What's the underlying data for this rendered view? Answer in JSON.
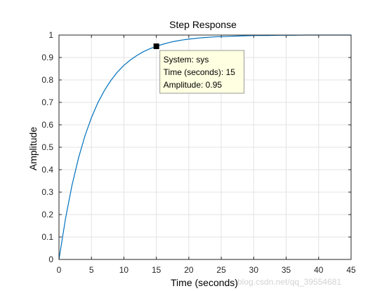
{
  "chart_data": {
    "type": "line",
    "title": "Step Response",
    "xlabel": "Time (seconds)",
    "ylabel": "Amplitude",
    "xlim": [
      0,
      45
    ],
    "ylim": [
      0,
      1
    ],
    "xticks": [
      0,
      5,
      10,
      15,
      20,
      25,
      30,
      35,
      40,
      45
    ],
    "yticks": [
      0,
      0.1,
      0.2,
      0.3,
      0.4,
      0.5,
      0.6,
      0.7,
      0.8,
      0.9,
      1
    ],
    "grid": true,
    "series": [
      {
        "color": "#0072bd",
        "x": [
          0,
          1,
          2,
          3,
          4,
          5,
          6,
          7,
          8,
          9,
          10,
          11,
          12,
          13,
          14,
          15,
          16,
          17,
          18,
          19,
          20,
          22,
          24,
          26,
          28,
          30,
          32,
          34,
          36,
          38,
          40,
          42,
          45
        ],
        "y": [
          0,
          0.181,
          0.33,
          0.451,
          0.551,
          0.632,
          0.699,
          0.753,
          0.798,
          0.835,
          0.865,
          0.889,
          0.909,
          0.926,
          0.939,
          0.95,
          0.959,
          0.967,
          0.973,
          0.978,
          0.982,
          0.988,
          0.992,
          0.994,
          0.996,
          0.998,
          0.998,
          0.999,
          0.999,
          1.0,
          1.0,
          1.0,
          1.0
        ]
      }
    ],
    "steady_state": 1,
    "datatip": {
      "x": 15,
      "y": 0.95,
      "lines": [
        "System: sys",
        "Time (seconds): 15",
        "Amplitude: 0.95"
      ]
    },
    "watermark": "blog.csdn.net/qq_39554681"
  }
}
